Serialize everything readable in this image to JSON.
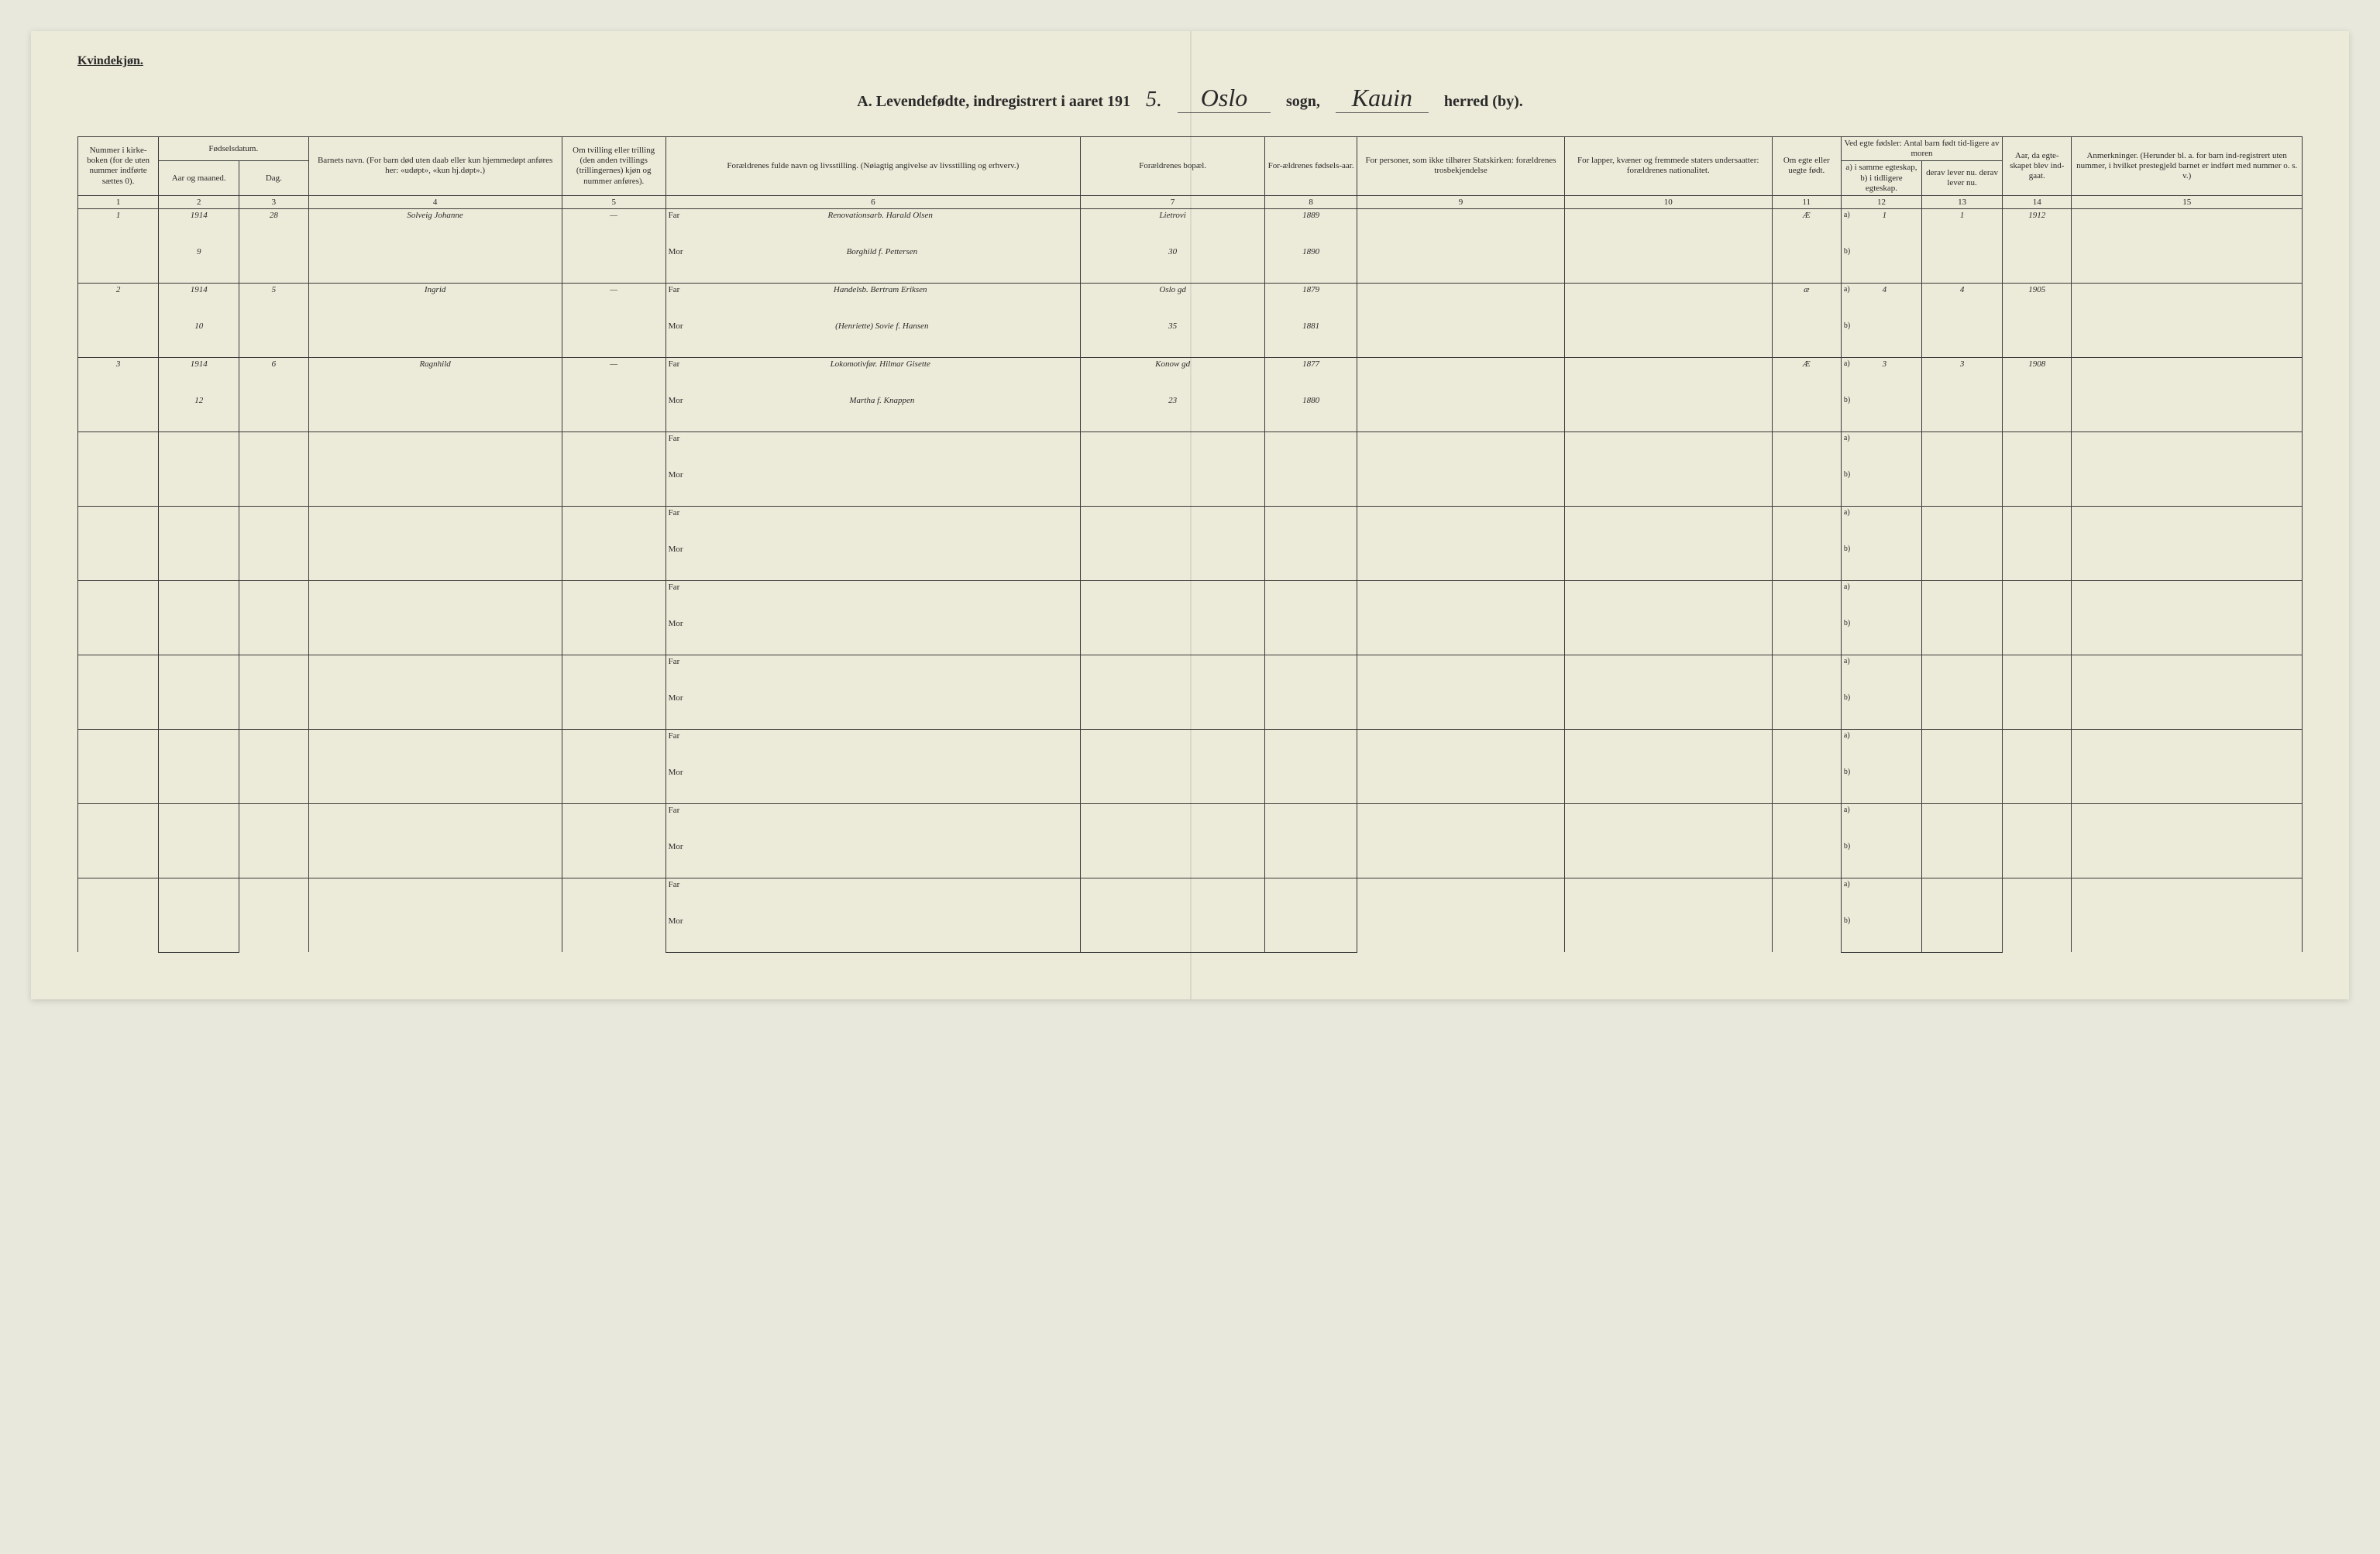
{
  "header": {
    "gender_label": "Kvindekjøn.",
    "title_prefix": "A.  Levendefødte, indregistrert i aaret 191",
    "year_digit": "5.",
    "sogn_value": "Oslo",
    "sogn_label": "sogn,",
    "herred_value": "Kauin",
    "herred_label": "herred (by)."
  },
  "columns": {
    "c1": "Nummer i kirke-boken (for de uten nummer indførte sættes 0).",
    "c2a": "Fødselsdatum.",
    "c2": "Aar og maaned.",
    "c3": "Dag.",
    "c4": "Barnets navn.\n(For barn død uten daab eller kun hjemmedøpt anføres her: «udøpt», «kun hj.døpt».)",
    "c5": "Om tvilling eller trilling (den anden tvillings (trillingernes) kjøn og nummer anføres).",
    "c6": "Forældrenes fulde navn og livsstilling.\n(Nøiagtig angivelse av livsstilling og erhverv.)",
    "c7": "Forældrenes bopæl.",
    "c8": "For-ældrenes fødsels-aar.",
    "c9": "For personer, som ikke tilhører Statskirken: forældrenes trosbekjendelse",
    "c10": "For lapper, kvæner og fremmede staters undersaatter: forældrenes nationalitet.",
    "c11": "Om egte eller uegte født.",
    "c12a": "Ved egte fødsler: Antal barn født tid-ligere av moren",
    "c12": "a) i samme egteskap, b) i tidligere egteskap.",
    "c13": "derav lever nu. derav lever nu.",
    "c14": "Aar, da egte-skapet blev ind-gaat.",
    "c15": "Anmerkninger.\n(Herunder bl. a. for barn ind-registrert uten nummer, i hvilket prestegjeld barnet er indført med nummer o. s. v.)"
  },
  "colnums": [
    "1",
    "2",
    "3",
    "4",
    "5",
    "6",
    "7",
    "8",
    "9",
    "10",
    "11",
    "12",
    "13",
    "14",
    "15"
  ],
  "far_label": "Far",
  "mor_label": "Mor",
  "a_label": "a)",
  "b_label": "b)",
  "rows": [
    {
      "num": "1",
      "year": "1914",
      "month": "9",
      "day": "28",
      "child": "Solveig Johanne",
      "twin": "—",
      "father": "Renovationsarb. Harald Olsen",
      "mother": "Borghild f. Pettersen",
      "addr_f": "Lietrovi",
      "addr_m": "30",
      "fyear": "1889",
      "myear": "1890",
      "egte": "Æ",
      "a_val": "1",
      "c_val": "1",
      "marriage": "1912"
    },
    {
      "num": "2",
      "year": "1914",
      "month": "10",
      "day": "5",
      "child": "Ingrid",
      "twin": "—",
      "father": "Handelsb. Bertram Eriksen",
      "mother": "(Henriette) Sovie f. Hansen",
      "addr_f": "Oslo gd",
      "addr_m": "35",
      "fyear": "1879",
      "myear": "1881",
      "egte": "æ",
      "a_val": "4",
      "c_val": "4",
      "marriage": "1905"
    },
    {
      "num": "3",
      "year": "1914",
      "month": "12",
      "day": "6",
      "child": "Ragnhild",
      "twin": "—",
      "father": "Lokomotivfør. Hilmar Gisette",
      "mother": "Martha f. Knappen",
      "addr_f": "Konow gd",
      "addr_m": "23",
      "fyear": "1877",
      "myear": "1880",
      "egte": "Æ",
      "a_val": "3",
      "c_val": "3",
      "marriage": "1908"
    }
  ],
  "empty_rows": 7,
  "style": {
    "bg": "#ecead8",
    "ink": "#2a2a2a",
    "border": "#3a3a3a",
    "header_fontsize": 11,
    "script_fontsize": 22
  }
}
